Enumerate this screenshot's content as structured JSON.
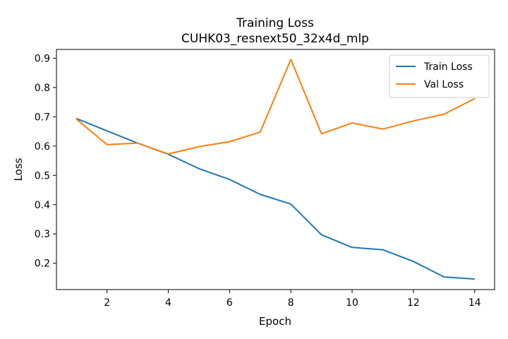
{
  "chart_data": {
    "type": "line",
    "title": "Training Loss",
    "subtitle": "CUHK03_resnext50_32x4d_mlp",
    "xlabel": "Epoch",
    "ylabel": "Loss",
    "x": [
      1,
      2,
      3,
      4,
      5,
      6,
      7,
      8,
      9,
      10,
      11,
      12,
      13,
      14
    ],
    "xlim": [
      0.35,
      14.65
    ],
    "ylim": [
      0.11,
      0.93
    ],
    "xticks": [
      2,
      4,
      6,
      8,
      10,
      12,
      14
    ],
    "yticks": [
      0.2,
      0.3,
      0.4,
      0.5,
      0.6,
      0.7,
      0.8,
      0.9
    ],
    "legend_position": "top-right",
    "grid": false,
    "series": [
      {
        "name": "Train Loss",
        "color": "#1f77b4",
        "values": [
          0.694,
          0.652,
          0.61,
          0.572,
          0.523,
          0.486,
          0.435,
          0.402,
          0.297,
          0.254,
          0.246,
          0.206,
          0.153,
          0.146
        ]
      },
      {
        "name": "Val Loss",
        "color": "#ff7f0e",
        "values": [
          0.692,
          0.605,
          0.61,
          0.573,
          0.598,
          0.615,
          0.648,
          0.896,
          0.642,
          0.679,
          0.658,
          0.686,
          0.709,
          0.762
        ]
      }
    ]
  }
}
